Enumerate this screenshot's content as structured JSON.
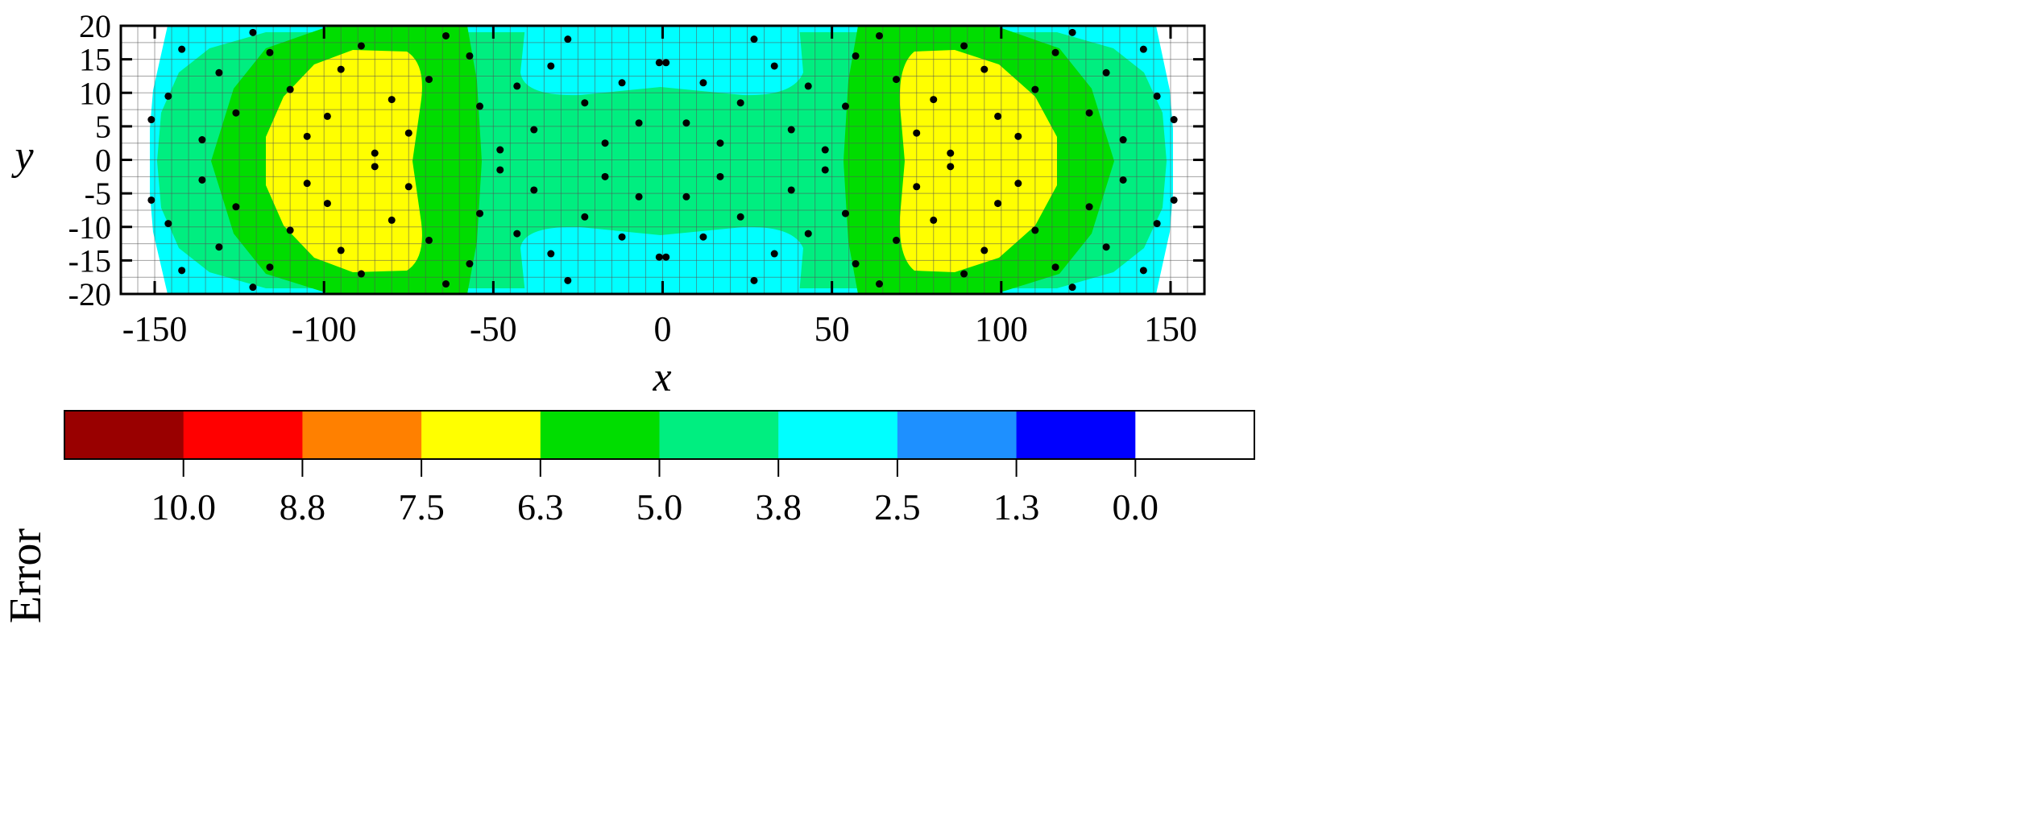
{
  "chart_data": {
    "type": "heatmap",
    "title": "",
    "xlabel": "x",
    "ylabel": "y",
    "xlim": [
      -160,
      160
    ],
    "ylim": [
      -20,
      20
    ],
    "x_ticks": [
      "-150",
      "-100",
      "-50",
      "0",
      "50",
      "100",
      "150"
    ],
    "y_ticks": [
      "20",
      "15",
      "10",
      "5",
      "0",
      "-5",
      "-10",
      "-15",
      "-20"
    ],
    "grid": true,
    "colorbar": {
      "label": "Error",
      "colors": [
        "#990000",
        "#ff0000",
        "#ff8000",
        "#ffff00",
        "#00dd00",
        "#00ee80",
        "#00ffff",
        "#1e90ff",
        "#0000ff",
        "#ffffff"
      ],
      "tick_labels": [
        "10.0",
        "8.8",
        "7.5",
        "6.3",
        "5.0",
        "3.8",
        "2.5",
        "1.3",
        "0.0"
      ]
    },
    "region_values": {
      "outer_band": 2.5,
      "ring": 3.8,
      "side_lobe_ring": 5.0,
      "side_lobe_core": 6.3,
      "center_lobes": 2.5
    },
    "sensor_points_upper": [
      [
        -121,
        19
      ],
      [
        -142,
        16.5
      ],
      [
        -116,
        16
      ],
      [
        -89,
        17
      ],
      [
        -64,
        18.5
      ],
      [
        -57,
        15.5
      ],
      [
        -28,
        18
      ],
      [
        27,
        18
      ],
      [
        64,
        18.5
      ],
      [
        57,
        15.5
      ],
      [
        89,
        17
      ],
      [
        116,
        16
      ],
      [
        121,
        19
      ],
      [
        142,
        16.5
      ],
      [
        -131,
        13
      ],
      [
        -95,
        13.5
      ],
      [
        -69,
        12
      ],
      [
        -33,
        14
      ],
      [
        -1,
        14.5
      ],
      [
        1,
        14.5
      ],
      [
        33,
        14
      ],
      [
        69,
        12
      ],
      [
        95,
        13.5
      ],
      [
        131,
        13
      ],
      [
        -146,
        9.5
      ],
      [
        -110,
        10.5
      ],
      [
        -80,
        9
      ],
      [
        -43,
        11
      ],
      [
        -12,
        11.5
      ],
      [
        12,
        11.5
      ],
      [
        43,
        11
      ],
      [
        80,
        9
      ],
      [
        110,
        10.5
      ],
      [
        146,
        9.5
      ],
      [
        -126,
        7
      ],
      [
        -99,
        6.5
      ],
      [
        -54,
        8
      ],
      [
        -23,
        8.5
      ],
      [
        23,
        8.5
      ],
      [
        54,
        8
      ],
      [
        99,
        6.5
      ],
      [
        126,
        7
      ],
      [
        -151,
        6
      ],
      [
        -105,
        3.5
      ],
      [
        -75,
        4
      ],
      [
        -38,
        4.5
      ],
      [
        -7,
        5.5
      ],
      [
        7,
        5.5
      ],
      [
        38,
        4.5
      ],
      [
        75,
        4
      ],
      [
        105,
        3.5
      ],
      [
        151,
        6
      ],
      [
        -136,
        3
      ],
      [
        -85,
        1
      ],
      [
        -48,
        1.5
      ],
      [
        -17,
        2.5
      ],
      [
        17,
        2.5
      ],
      [
        48,
        1.5
      ],
      [
        85,
        1
      ],
      [
        136,
        3
      ]
    ]
  }
}
